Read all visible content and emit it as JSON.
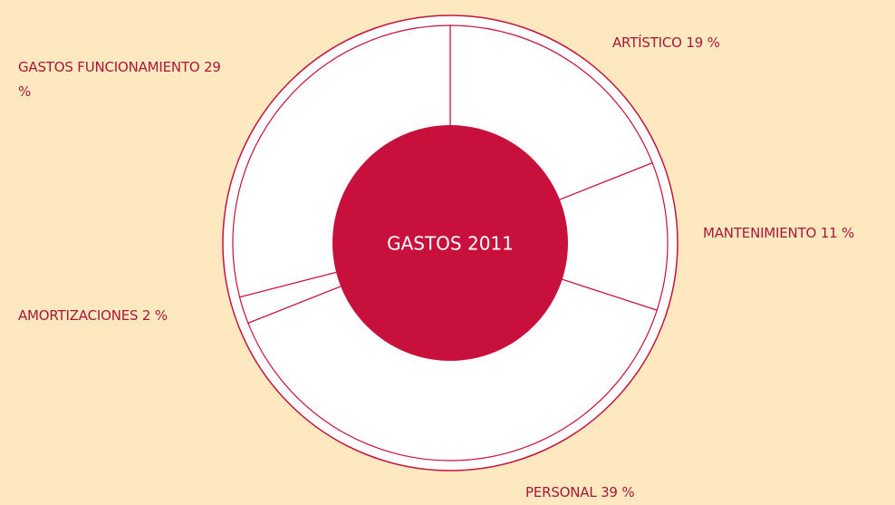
{
  "chart_data": {
    "type": "donut",
    "title": "GASTOS 2011",
    "categories": [
      "ARTÍSTICO",
      "MANTENIMIENTO",
      "PERSONAL",
      "AMORTIZACIONES",
      "GASTOS FUNCIONAMIENTO"
    ],
    "values": [
      19,
      11,
      39,
      2,
      29
    ],
    "value_labels": [
      "19 %",
      "11 %",
      "39 %",
      "2 %",
      "29 %"
    ],
    "color": "#c8103c",
    "segment_color": "#ffffff"
  }
}
